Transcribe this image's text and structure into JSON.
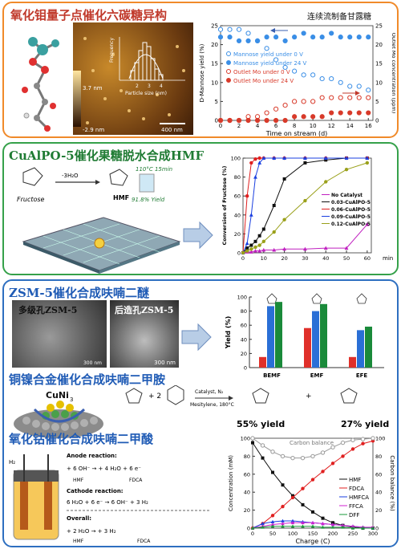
{
  "panel1": {
    "title": "氧化钼量子点催化六碳糖异构",
    "afm": {
      "height_top": "3.7 nm",
      "height_bottom": "-2.9 nm",
      "scale": "400 nm",
      "hist_xlabel": "Particle size (nm)",
      "hist_ylabel": "Frequency",
      "hist_ticks": [
        "2",
        "3",
        "4"
      ]
    },
    "chart": {
      "title": "连续流制备甘露糖",
      "xlabel": "Time on stream (d)",
      "ylabel_left": "D-Mannose yield (%)",
      "ylabel_right": "Outlet Mo concentration (ppm)",
      "xticks": [
        "0",
        "2",
        "4",
        "6",
        "8",
        "10",
        "12",
        "14",
        "16"
      ],
      "yticks_left": [
        "0",
        "5",
        "10",
        "15",
        "20",
        "25"
      ],
      "yticks_right": [
        "0",
        "5",
        "10",
        "15",
        "20",
        "25"
      ],
      "legend": [
        "Mannose yield under 0 V",
        "Mannose yield under 24 V",
        "Outlet Mo under 0 V",
        "Outlet Mo under 24 V"
      ]
    }
  },
  "panel2": {
    "title": "CuAlPO-5催化果糖脱水合成HMF",
    "scheme": {
      "reactant": "Fructose",
      "cond": "-3H₂O",
      "product": "HMF",
      "temp": "110°C 15min",
      "yield": "91.8% Yield"
    },
    "chart": {
      "xlabel": "min",
      "ylabel": "Conversion of Fructose (%)",
      "xticks": [
        "0",
        "10",
        "20",
        "30",
        "40",
        "50",
        "60"
      ],
      "yticks": [
        "0",
        "20",
        "40",
        "60",
        "80",
        "100"
      ],
      "legend": [
        "No Catalyst",
        "0.03-CuAlPO-5",
        "0.06-CuAlPO-5",
        "0.09-CuAlPO-5",
        "0.12-CuAlPO-5"
      ]
    }
  },
  "panel3": {
    "title_a": "ZSM-5催化合成呋喃二醚",
    "label_hier": "多级孔ZSM-5",
    "label_post": "后造孔ZSM-5",
    "scale1": "300 nm",
    "scale2": "300 nm",
    "bar": {
      "ylabel": "Yield (%)",
      "yticks": [
        "0",
        "20",
        "40",
        "60",
        "80",
        "100"
      ],
      "categories": [
        "BEMF",
        "EMF",
        "EFE"
      ]
    },
    "title_b": "铜镍合金催化合成呋喃二甲胺",
    "alloy": "CuNi",
    "alloy_sub": "3",
    "rxn": {
      "plus": "+ 2",
      "cond1": "Catalyst, N₂",
      "cond2": "Mesitylene, 180°C",
      "y1": "55% yield",
      "y2": "27% yield",
      "prod_plus": "+"
    },
    "title_c": "氧化钴催化合成呋喃二甲酸",
    "cell": {
      "anode": "Anode reaction:",
      "anode_eq": "+ 6 OH⁻ → + 4 H₂O + 6 e⁻",
      "cathode": "Cathode reaction:",
      "cathode_eq": "6 H₂O + 6 e⁻ → 6 OH⁻ + 3 H₂",
      "overall": "Overall:",
      "overall_eq": "+ 2 H₂O → + 3 H₂",
      "hmf": "HMF",
      "fdca": "FDCA",
      "h2": "H₂"
    },
    "line": {
      "xlabel": "Charge (C)",
      "ylabel_left": "Concentration (mM)",
      "ylabel_right": "Carbon balance (%)",
      "xticks": [
        "0",
        "50",
        "100",
        "150",
        "200",
        "250",
        "300"
      ],
      "yticks": [
        "0",
        "20",
        "40",
        "60",
        "80",
        "100"
      ],
      "legend_cb": "Carbon balance",
      "legend": [
        "HMF",
        "FDCA",
        "HMFCA",
        "FFCA",
        "DFF"
      ]
    }
  },
  "chart_data": [
    {
      "type": "line",
      "x": [
        0,
        1,
        2,
        3,
        4,
        5,
        6,
        7,
        8,
        9,
        10,
        11,
        12,
        13,
        14,
        15,
        16
      ],
      "series": [
        {
          "name": "Mannose yield under 0 V",
          "values": [
            24,
            24,
            24,
            23,
            21,
            19,
            16,
            14,
            13,
            12,
            12,
            11,
            11,
            10,
            9,
            9,
            8
          ]
        },
        {
          "name": "Mannose yield under 24 V",
          "values": [
            22,
            22,
            21,
            21,
            21,
            22,
            22,
            21,
            22,
            23,
            22,
            22,
            23,
            22,
            22,
            22,
            22
          ]
        },
        {
          "name": "Outlet Mo under 0 V",
          "values": [
            0,
            0,
            0,
            1,
            1,
            2,
            3,
            4,
            5,
            5,
            5,
            6,
            6,
            6,
            6,
            6,
            6
          ]
        },
        {
          "name": "Outlet Mo under 24 V",
          "values": [
            0,
            0,
            0,
            0,
            0,
            0,
            0,
            0,
            1,
            1,
            1,
            1,
            2,
            2,
            2,
            2,
            2
          ]
        }
      ],
      "xlabel": "Time on stream (d)",
      "ylabel": "D-Mannose yield (%)",
      "ylim": [
        0,
        25
      ]
    },
    {
      "type": "line",
      "x": [
        0,
        2,
        4,
        6,
        8,
        10,
        15,
        20,
        30,
        40,
        50,
        60
      ],
      "series": [
        {
          "name": "No Catalyst",
          "values": [
            0,
            1,
            1,
            2,
            2,
            3,
            3,
            4,
            4,
            5,
            5,
            30
          ]
        },
        {
          "name": "0.03-CuAlPO-5",
          "values": [
            0,
            5,
            8,
            12,
            18,
            25,
            50,
            78,
            95,
            98,
            100,
            100
          ]
        },
        {
          "name": "0.06-CuAlPO-5",
          "values": [
            0,
            60,
            95,
            99,
            100,
            100,
            100,
            100,
            100,
            100,
            100,
            100
          ]
        },
        {
          "name": "0.09-CuAlPO-5",
          "values": [
            0,
            10,
            40,
            80,
            95,
            100,
            100,
            100,
            100,
            100,
            100,
            100
          ]
        },
        {
          "name": "0.12-CuAlPO-5",
          "values": [
            0,
            2,
            4,
            6,
            8,
            12,
            22,
            35,
            55,
            75,
            88,
            95
          ]
        }
      ],
      "xlabel": "min",
      "ylabel": "Conversion of Fructose (%)",
      "ylim": [
        0,
        100
      ]
    },
    {
      "type": "bar",
      "categories": [
        "BEMF",
        "EMF",
        "EFE"
      ],
      "series": [
        {
          "name": "",
          "values": [
            15,
            56,
            15
          ]
        },
        {
          "name": "",
          "values": [
            87,
            80,
            53
          ]
        },
        {
          "name": "",
          "values": [
            93,
            90,
            58
          ]
        }
      ],
      "ylabel": "Yield (%)",
      "ylim": [
        0,
        100
      ]
    },
    {
      "type": "line",
      "x": [
        0,
        25,
        50,
        75,
        100,
        125,
        150,
        175,
        200,
        225,
        250,
        275,
        300
      ],
      "series": [
        {
          "name": "HMF",
          "values": [
            95,
            78,
            62,
            48,
            36,
            26,
            18,
            11,
            6,
            3,
            1,
            0,
            0
          ]
        },
        {
          "name": "FDCA",
          "values": [
            0,
            5,
            14,
            24,
            34,
            44,
            54,
            63,
            72,
            80,
            88,
            94,
            97
          ]
        },
        {
          "name": "HMFCA",
          "values": [
            0,
            5,
            7,
            8,
            8,
            7,
            6,
            5,
            4,
            3,
            2,
            1,
            0
          ]
        },
        {
          "name": "FFCA",
          "values": [
            0,
            2,
            4,
            5,
            6,
            6,
            6,
            5,
            4,
            3,
            2,
            1,
            1
          ]
        },
        {
          "name": "DFF",
          "values": [
            0,
            1,
            2,
            2,
            2,
            2,
            2,
            1,
            1,
            1,
            0,
            0,
            0
          ]
        },
        {
          "name": "Carbon balance",
          "values": [
            100,
            92,
            85,
            80,
            78,
            78,
            80,
            84,
            90,
            95,
            98,
            99,
            100
          ]
        }
      ],
      "xlabel": "Charge (C)",
      "ylabel": "Concentration (mM)",
      "ylim": [
        0,
        100
      ]
    }
  ],
  "colors": {
    "orange": "#f08a2a",
    "green": "#35a14a",
    "blue": "#2e6fc0",
    "red": "#e0302a",
    "bargreen": "#1a8a3a",
    "barblue": "#2a6fd6"
  }
}
